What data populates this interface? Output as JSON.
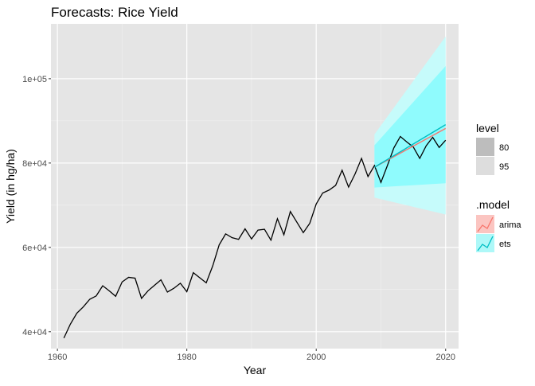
{
  "chart_data": {
    "type": "line",
    "title": "Forecasts: Rice Yield",
    "xlabel": "Year",
    "ylabel": "Yield (in hg/ha)",
    "xlim": [
      1959,
      2022
    ],
    "ylim": [
      36000,
      113000
    ],
    "x_ticks": [
      1960,
      1980,
      2000,
      2020
    ],
    "x_tick_labels": [
      "1960",
      "1980",
      "2000",
      "2020"
    ],
    "y_ticks": [
      40000,
      60000,
      80000,
      100000
    ],
    "y_tick_labels": [
      "4e+04",
      "6e+04",
      "8e+04",
      "1e+05"
    ],
    "grid": true,
    "background": "#e5e5e5",
    "series": [
      {
        "role": "observed",
        "color": "#000000",
        "x": [
          1961,
          1962,
          1963,
          1964,
          1965,
          1966,
          1967,
          1968,
          1969,
          1970,
          1971,
          1972,
          1973,
          1974,
          1975,
          1976,
          1977,
          1978,
          1979,
          1980,
          1981,
          1982,
          1983,
          1984,
          1985,
          1986,
          1987,
          1988,
          1989,
          1990,
          1991,
          1992,
          1993,
          1994,
          1995,
          1996,
          1997,
          1998,
          1999,
          2000,
          2001,
          2002,
          2003,
          2004,
          2005,
          2006,
          2007,
          2008,
          2009,
          2010,
          2011,
          2012,
          2013,
          2014,
          2015,
          2016,
          2017,
          2018,
          2019,
          2020
        ],
        "values": [
          38500,
          41800,
          44400,
          45900,
          47700,
          48500,
          50900,
          49700,
          48400,
          51800,
          52900,
          52700,
          47900,
          49700,
          51000,
          52300,
          49400,
          50300,
          51500,
          49500,
          54000,
          52800,
          51600,
          55600,
          60600,
          63200,
          62300,
          61900,
          64400,
          62000,
          64100,
          64300,
          61700,
          66800,
          63000,
          68500,
          66000,
          63500,
          65700,
          70300,
          72900,
          73600,
          74700,
          78300,
          74300,
          77400,
          81100,
          76800,
          79400,
          75400,
          79400,
          83600,
          86300,
          85000,
          83800,
          81100,
          84100,
          86100,
          83700,
          85400
        ]
      },
      {
        "name": "arima",
        "color": "#f8766d",
        "x": [
          2009,
          2020
        ],
        "values": [
          79000,
          88200
        ]
      },
      {
        "name": "ets",
        "color": "#00bfc4",
        "x": [
          2009,
          2020
        ],
        "values": [
          79000,
          89100
        ],
        "bands": [
          {
            "level": 95,
            "x": [
              2009,
              2020
            ],
            "lower": [
              71800,
              67800
            ],
            "upper": [
              86800,
              110000
            ],
            "color": "#c6fbfb"
          },
          {
            "level": 80,
            "x": [
              2009,
              2020
            ],
            "lower": [
              74200,
              75200
            ],
            "upper": [
              84200,
              103000
            ],
            "color": "#8ffbfd"
          }
        ]
      }
    ],
    "legends": [
      {
        "title": "level",
        "placement": "right",
        "items": [
          {
            "label": "80",
            "color": "#bdbdbd"
          },
          {
            "label": "95",
            "color": "#dddddd"
          }
        ]
      },
      {
        "title": ".model",
        "placement": "right",
        "items": [
          {
            "label": "arima",
            "color": "#f8766d",
            "fill": "#fbc5c1"
          },
          {
            "label": "ets",
            "color": "#00bfc4",
            "fill": "#aef8f8"
          }
        ]
      }
    ]
  }
}
